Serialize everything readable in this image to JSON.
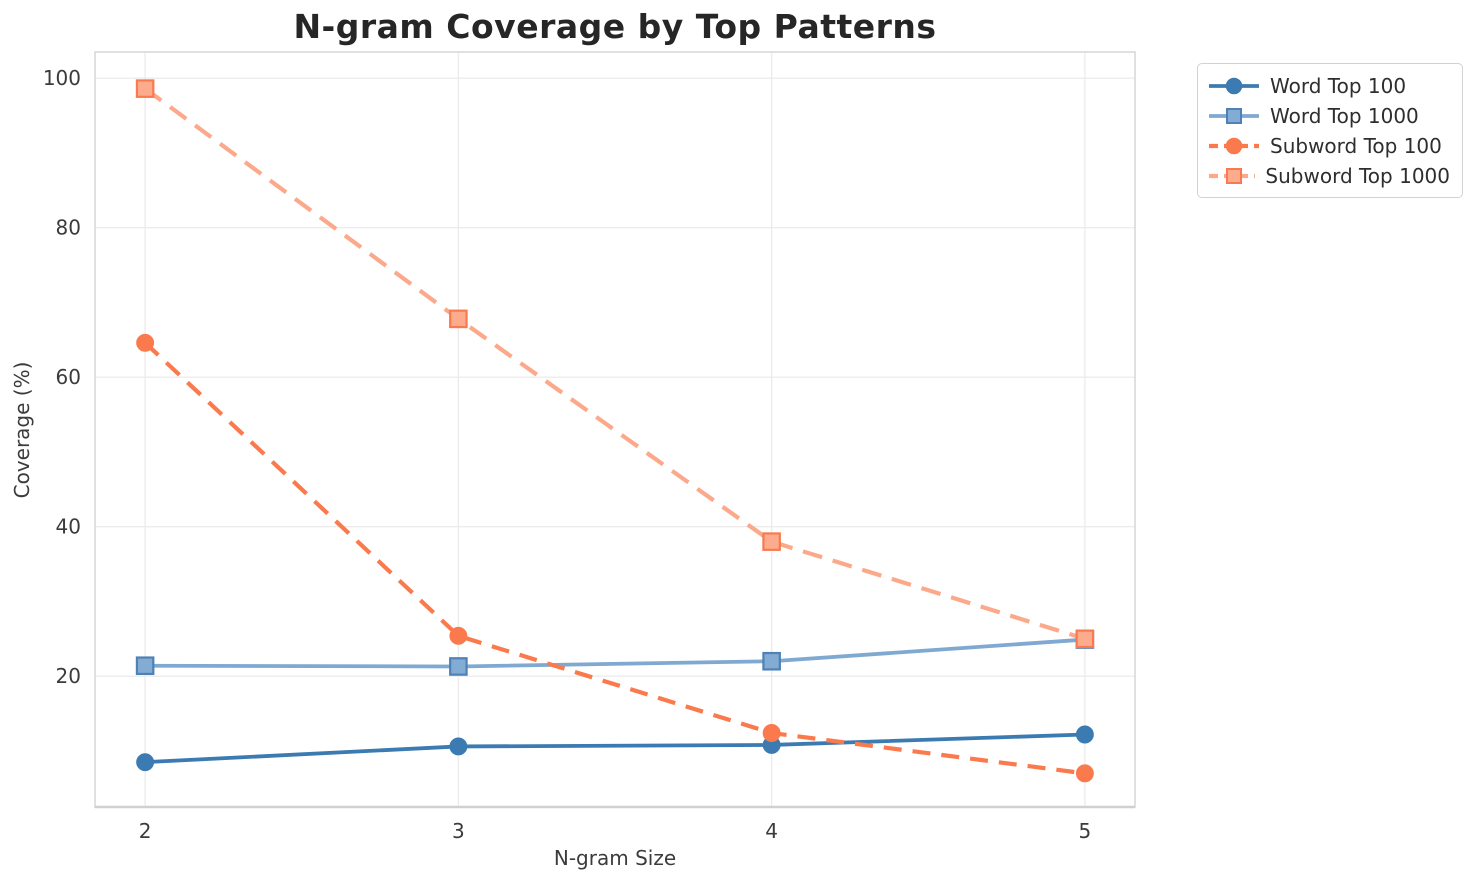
{
  "chart_data": {
    "type": "line",
    "title": "N-gram Coverage by Top Patterns",
    "xlabel": "N-gram Size",
    "ylabel": "Coverage (%)",
    "x": [
      2,
      3,
      4,
      5
    ],
    "xticks": [
      "2",
      "3",
      "4",
      "5"
    ],
    "yticks": [
      20,
      40,
      60,
      80,
      100
    ],
    "xlim": [
      1.84,
      5.16
    ],
    "ylim": [
      2.5,
      103.5
    ],
    "grid": true,
    "legend_position": "outside-top-right",
    "background": "#ffffff",
    "series": [
      {
        "name": "Word Top 100",
        "values": [
          8.5,
          10.6,
          10.8,
          12.2
        ],
        "color": "#3C7BB1",
        "line_style": "solid",
        "line_width": 3.8,
        "marker": "circle",
        "marker_fill": "#3C7BB1",
        "marker_edge": "#3C7BB1"
      },
      {
        "name": "Word Top 1000",
        "values": [
          21.4,
          21.3,
          22.0,
          24.9
        ],
        "color": "#7FA9D1",
        "line_style": "solid",
        "line_width": 3.8,
        "marker": "square",
        "marker_fill": "#83ACD5",
        "marker_edge": "#4E81B5"
      },
      {
        "name": "Subword Top 100",
        "values": [
          64.6,
          25.4,
          12.4,
          7.0
        ],
        "color": "#FA7A4D",
        "line_style": "dashed",
        "dash_pattern": "18 11",
        "line_width": 4.2,
        "marker": "circle",
        "marker_fill": "#FA7A4D",
        "marker_edge": "#FA7A4D"
      },
      {
        "name": "Subword Top 1000",
        "values": [
          98.6,
          67.8,
          38.0,
          25.0
        ],
        "color": "#FCA98B",
        "line_style": "dashed",
        "dash_pattern": "20 11",
        "line_width": 4.2,
        "marker": "square",
        "marker_fill": "#FCAB8D",
        "marker_edge": "#F87A4E"
      }
    ]
  }
}
